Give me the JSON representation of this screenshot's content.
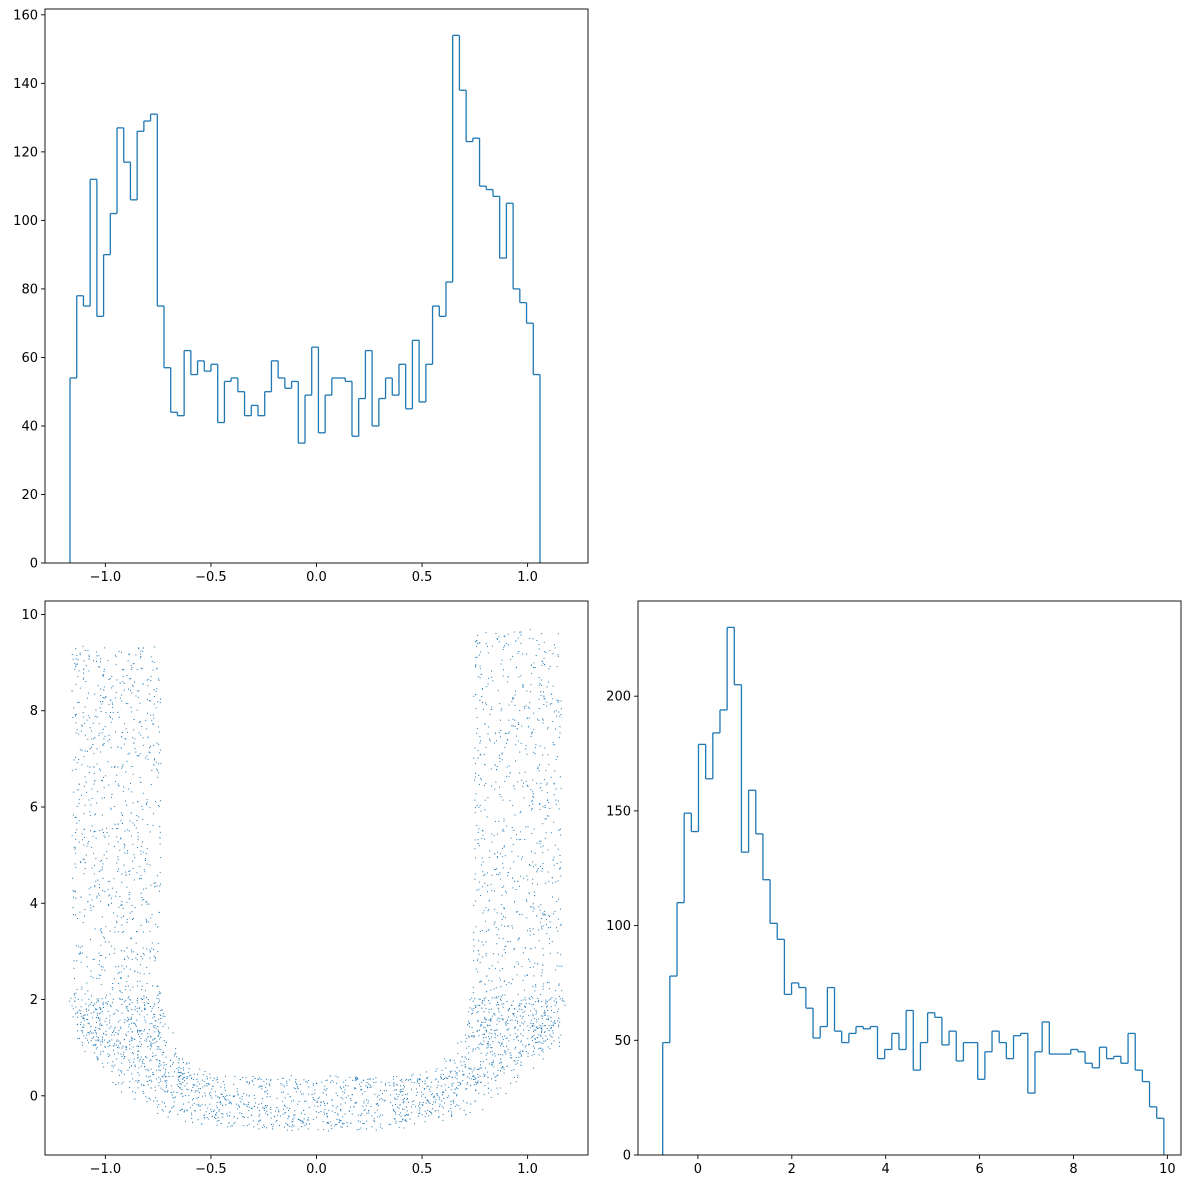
{
  "chart_data": [
    {
      "type": "histogram",
      "x_bins": {
        "start": -1.1675,
        "width": 0.0318
      },
      "values": [
        54,
        78,
        75,
        112,
        72,
        90,
        102,
        127,
        117,
        106,
        126,
        129,
        131,
        75,
        57,
        44,
        43,
        62,
        55,
        59,
        56,
        58,
        41,
        53,
        54,
        50,
        43,
        46,
        43,
        50,
        59,
        54,
        51,
        53,
        35,
        49,
        63,
        38,
        49,
        54,
        54,
        53,
        37,
        48,
        62,
        40,
        48,
        54,
        49,
        58,
        45,
        65,
        47,
        58,
        75,
        72,
        82,
        154,
        138,
        123,
        124,
        110,
        109,
        107,
        89,
        105,
        80,
        76,
        70,
        55
      ],
      "xlim": [
        -1.286,
        1.286
      ],
      "ylim": [
        0,
        161.7
      ],
      "xticks": [
        -1.0,
        -0.5,
        0.0,
        0.5,
        1.0
      ],
      "xtick_labels": [
        "−1.0",
        "−0.5",
        "0.0",
        "0.5",
        "1.0"
      ],
      "yticks": [
        0,
        20,
        40,
        60,
        80,
        100,
        120,
        140,
        160
      ],
      "ytick_labels": [
        "0",
        "20",
        "40",
        "60",
        "80",
        "100",
        "120",
        "140",
        "160"
      ],
      "color": "#1f77b4"
    },
    {
      "type": "scatter",
      "point_count": 4000,
      "shape": "u-shaped band: two vertical arms near x=±0.95 and a curved base near y=0",
      "x_range": [
        -1.18,
        1.18
      ],
      "y_range": [
        -0.75,
        9.75
      ],
      "xlim": [
        -1.286,
        1.286
      ],
      "ylim": [
        -1.23,
        10.28
      ],
      "xticks": [
        -1.0,
        -0.5,
        0.0,
        0.5,
        1.0
      ],
      "xtick_labels": [
        "−1.0",
        "−0.5",
        "0.0",
        "0.5",
        "1.0"
      ],
      "yticks": [
        0,
        2,
        4,
        6,
        8,
        10
      ],
      "ytick_labels": [
        "0",
        "2",
        "4",
        "6",
        "8",
        "10"
      ],
      "color": "#1f77b4"
    },
    {
      "type": "histogram",
      "x_bins": {
        "start": -0.75,
        "width": 0.1525
      },
      "values": [
        49,
        78,
        110,
        149,
        141,
        179,
        164,
        184,
        194,
        230,
        205,
        132,
        159,
        140,
        120,
        101,
        94,
        70,
        75,
        73,
        64,
        51,
        56,
        73,
        54,
        49,
        53,
        56,
        55,
        56,
        42,
        46,
        53,
        46,
        63,
        37,
        49,
        62,
        60,
        48,
        54,
        41,
        49,
        49,
        33,
        45,
        54,
        49,
        42,
        52,
        53,
        27,
        45,
        58,
        44,
        44,
        44,
        46,
        45,
        40,
        38,
        47,
        42,
        43,
        40,
        53,
        37,
        32,
        21,
        16
      ],
      "xlim": [
        -1.276,
        10.29
      ],
      "ylim": [
        0,
        241.5
      ],
      "xticks": [
        0,
        2,
        4,
        6,
        8,
        10
      ],
      "xtick_labels": [
        "0",
        "2",
        "4",
        "6",
        "8",
        "10"
      ],
      "yticks": [
        0,
        50,
        100,
        150,
        200
      ],
      "ytick_labels": [
        "0",
        "50",
        "100",
        "150",
        "200"
      ],
      "color": "#1f77b4"
    }
  ]
}
